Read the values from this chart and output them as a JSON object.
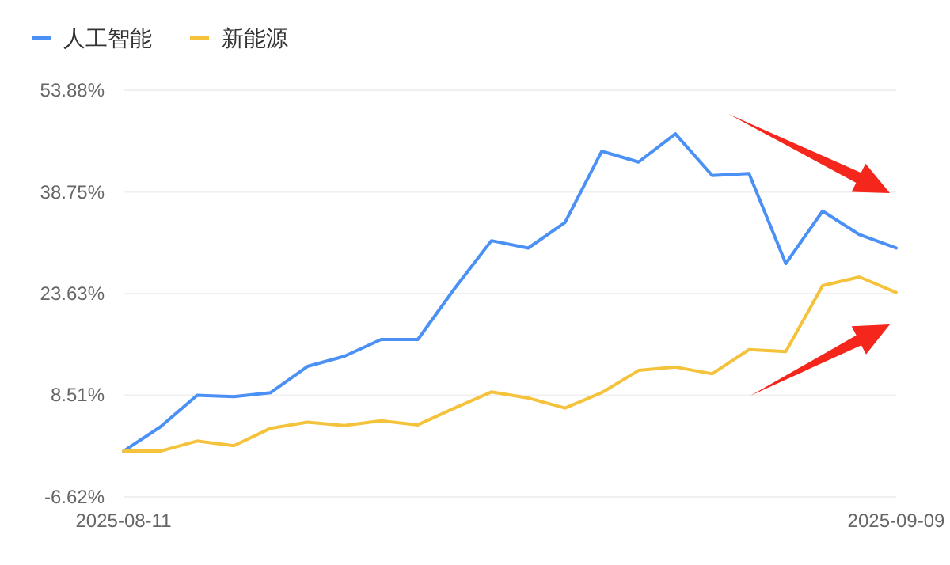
{
  "chart_data": {
    "type": "line",
    "categories": [
      "2025-08-11",
      null,
      null,
      null,
      null,
      null,
      null,
      null,
      null,
      null,
      null,
      null,
      null,
      null,
      null,
      null,
      null,
      null,
      null,
      null,
      null,
      "2025-09-09"
    ],
    "series": [
      {
        "name": "人工智能",
        "color": "#4a90f5",
        "values": [
          0.2,
          3.8,
          8.5,
          8.3,
          8.9,
          12.8,
          14.3,
          16.8,
          16.8,
          24.4,
          31.5,
          30.4,
          34.2,
          44.8,
          43.2,
          47.4,
          41.2,
          41.5,
          28.1,
          35.9,
          32.4,
          30.4
        ]
      },
      {
        "name": "新能源",
        "color": "#f5c33b",
        "values": [
          0.2,
          0.2,
          1.7,
          1.0,
          3.6,
          4.5,
          4.0,
          4.7,
          4.1,
          6.6,
          9.0,
          8.1,
          6.6,
          8.9,
          12.2,
          12.7,
          11.7,
          15.3,
          15.0,
          24.8,
          26.1,
          23.8
        ]
      }
    ],
    "ylim": [
      -6.62,
      53.88
    ],
    "yticks": [
      {
        "value": -6.62,
        "label": "-6.62%"
      },
      {
        "value": 8.51,
        "label": "8.51%"
      },
      {
        "value": 23.63,
        "label": "23.63%"
      },
      {
        "value": 38.75,
        "label": "38.75%"
      },
      {
        "value": 53.88,
        "label": "53.88%"
      }
    ],
    "grid": "y",
    "legend": "top left",
    "marker": "none",
    "line_style": "solid"
  }
}
